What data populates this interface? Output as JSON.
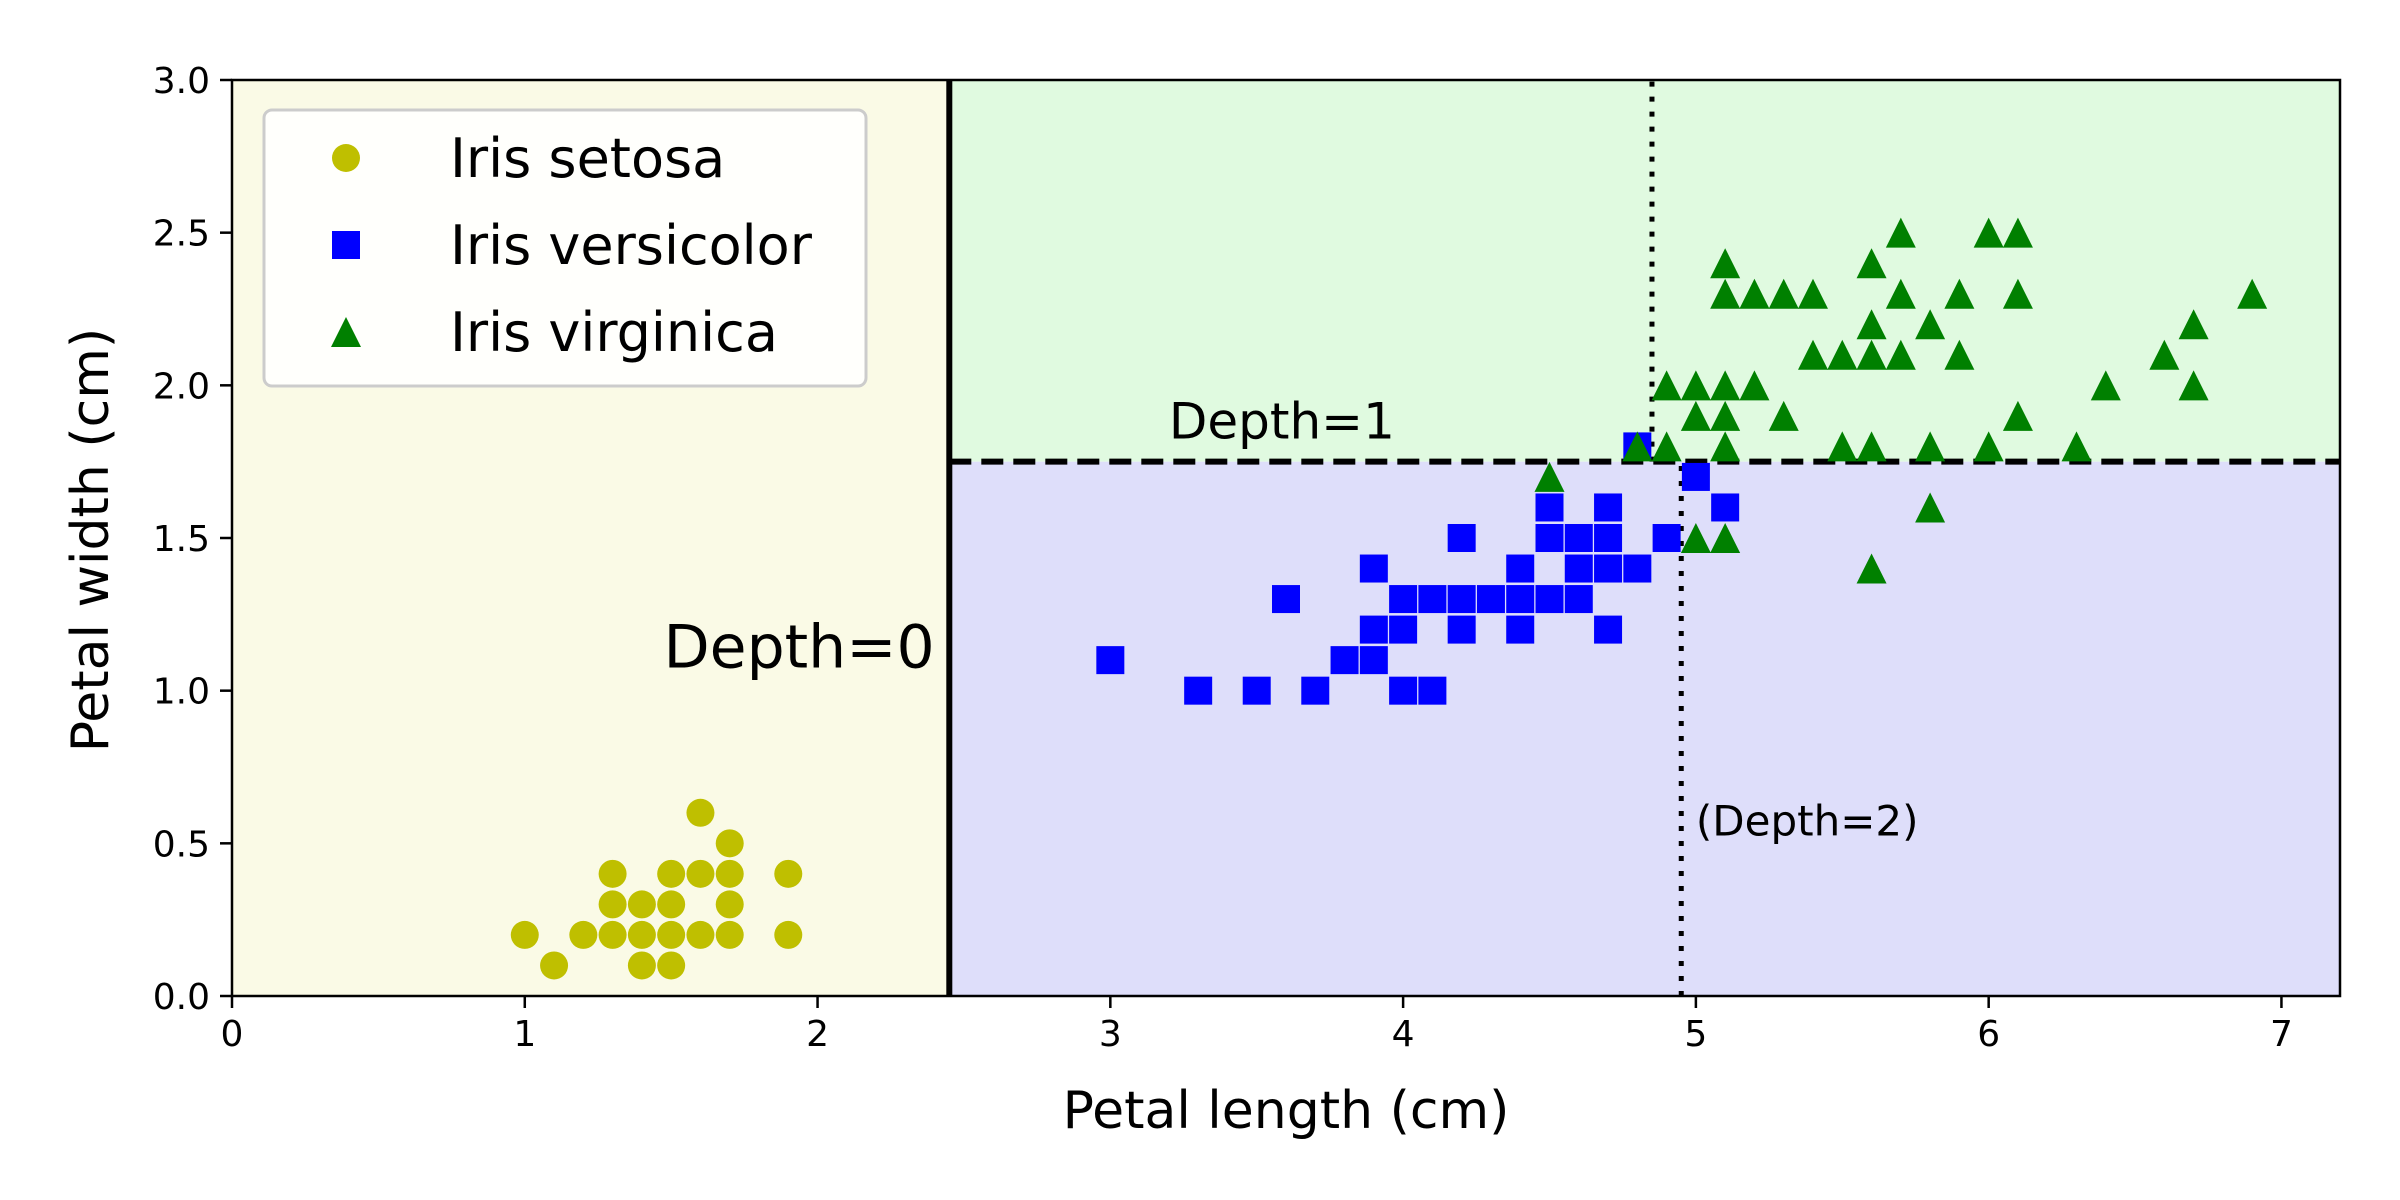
{
  "chart_data": {
    "type": "scatter",
    "xlabel": "Petal length (cm)",
    "ylabel": "Petal width (cm)",
    "xlim": [
      0,
      7.2
    ],
    "ylim": [
      0,
      3.0
    ],
    "xticks": [
      "0",
      "1",
      "2",
      "3",
      "4",
      "5",
      "6",
      "7"
    ],
    "yticks": [
      "0.0",
      "0.5",
      "1.0",
      "1.5",
      "2.0",
      "2.5",
      "3.0"
    ],
    "grid": false,
    "legend_position": "top-left",
    "regions": [
      {
        "x": [
          0,
          2.45
        ],
        "y": [
          0,
          3.0
        ],
        "color": "#fafae6"
      },
      {
        "x": [
          2.45,
          7.2
        ],
        "y": [
          1.75,
          3.0
        ],
        "color": "#e0fae0"
      },
      {
        "x": [
          2.45,
          7.2
        ],
        "y": [
          0,
          1.75
        ],
        "color": "#dedefa"
      }
    ],
    "boundaries": [
      {
        "style": "solid",
        "x": [
          2.45,
          2.45
        ],
        "y": [
          0,
          3.0
        ]
      },
      {
        "style": "dashed",
        "x": [
          2.45,
          7.2
        ],
        "y": [
          1.75,
          1.75
        ]
      },
      {
        "style": "dotted",
        "x": [
          4.95,
          4.95
        ],
        "y": [
          0,
          1.75
        ]
      },
      {
        "style": "dotted",
        "x": [
          4.85,
          4.85
        ],
        "y": [
          1.75,
          3.0
        ]
      }
    ],
    "annotations": [
      {
        "text": "Depth=0",
        "x": 2.4,
        "y": 1.05,
        "anchor": "end",
        "size": "large"
      },
      {
        "text": "Depth=1",
        "x": 3.2,
        "y": 1.8,
        "anchor": "start",
        "size": "medium"
      },
      {
        "text": "(Depth=2)",
        "x": 5.0,
        "y": 0.5,
        "anchor": "start",
        "size": "small"
      }
    ],
    "series": [
      {
        "name": "Iris setosa",
        "marker": "circle",
        "color": "#bfbf00",
        "points": [
          [
            1.0,
            0.2
          ],
          [
            1.1,
            0.1
          ],
          [
            1.2,
            0.2
          ],
          [
            1.3,
            0.2
          ],
          [
            1.3,
            0.3
          ],
          [
            1.3,
            0.4
          ],
          [
            1.4,
            0.1
          ],
          [
            1.4,
            0.2
          ],
          [
            1.4,
            0.3
          ],
          [
            1.5,
            0.1
          ],
          [
            1.5,
            0.2
          ],
          [
            1.5,
            0.3
          ],
          [
            1.5,
            0.4
          ],
          [
            1.6,
            0.2
          ],
          [
            1.6,
            0.4
          ],
          [
            1.6,
            0.6
          ],
          [
            1.7,
            0.2
          ],
          [
            1.7,
            0.3
          ],
          [
            1.7,
            0.4
          ],
          [
            1.7,
            0.5
          ],
          [
            1.9,
            0.2
          ],
          [
            1.9,
            0.4
          ]
        ]
      },
      {
        "name": "Iris versicolor",
        "marker": "square",
        "color": "#0000ff",
        "points": [
          [
            3.0,
            1.1
          ],
          [
            3.3,
            1.0
          ],
          [
            3.5,
            1.0
          ],
          [
            3.6,
            1.3
          ],
          [
            3.7,
            1.0
          ],
          [
            3.8,
            1.1
          ],
          [
            3.9,
            1.1
          ],
          [
            3.9,
            1.2
          ],
          [
            3.9,
            1.4
          ],
          [
            4.0,
            1.0
          ],
          [
            4.0,
            1.2
          ],
          [
            4.0,
            1.3
          ],
          [
            4.1,
            1.0
          ],
          [
            4.1,
            1.3
          ],
          [
            4.2,
            1.2
          ],
          [
            4.2,
            1.3
          ],
          [
            4.2,
            1.5
          ],
          [
            4.3,
            1.3
          ],
          [
            4.4,
            1.2
          ],
          [
            4.4,
            1.3
          ],
          [
            4.4,
            1.4
          ],
          [
            4.5,
            1.3
          ],
          [
            4.5,
            1.5
          ],
          [
            4.5,
            1.6
          ],
          [
            4.6,
            1.3
          ],
          [
            4.6,
            1.4
          ],
          [
            4.6,
            1.5
          ],
          [
            4.7,
            1.2
          ],
          [
            4.7,
            1.4
          ],
          [
            4.7,
            1.5
          ],
          [
            4.7,
            1.6
          ],
          [
            4.8,
            1.4
          ],
          [
            4.8,
            1.8
          ],
          [
            4.9,
            1.5
          ],
          [
            5.0,
            1.7
          ],
          [
            5.1,
            1.6
          ]
        ]
      },
      {
        "name": "Iris virginica",
        "marker": "triangle",
        "color": "#008000",
        "points": [
          [
            4.5,
            1.7
          ],
          [
            4.8,
            1.8
          ],
          [
            4.9,
            1.8
          ],
          [
            4.9,
            2.0
          ],
          [
            5.0,
            1.5
          ],
          [
            5.0,
            1.9
          ],
          [
            5.0,
            2.0
          ],
          [
            5.1,
            1.5
          ],
          [
            5.1,
            1.8
          ],
          [
            5.1,
            1.9
          ],
          [
            5.1,
            2.0
          ],
          [
            5.1,
            2.3
          ],
          [
            5.1,
            2.4
          ],
          [
            5.2,
            2.0
          ],
          [
            5.2,
            2.3
          ],
          [
            5.3,
            1.9
          ],
          [
            5.3,
            2.3
          ],
          [
            5.4,
            2.1
          ],
          [
            5.4,
            2.3
          ],
          [
            5.5,
            1.8
          ],
          [
            5.5,
            2.1
          ],
          [
            5.6,
            1.4
          ],
          [
            5.6,
            1.8
          ],
          [
            5.6,
            2.1
          ],
          [
            5.6,
            2.2
          ],
          [
            5.6,
            2.4
          ],
          [
            5.7,
            2.1
          ],
          [
            5.7,
            2.3
          ],
          [
            5.7,
            2.5
          ],
          [
            5.8,
            1.6
          ],
          [
            5.8,
            1.8
          ],
          [
            5.8,
            2.2
          ],
          [
            5.9,
            2.1
          ],
          [
            5.9,
            2.3
          ],
          [
            6.0,
            1.8
          ],
          [
            6.0,
            2.5
          ],
          [
            6.1,
            1.9
          ],
          [
            6.1,
            2.3
          ],
          [
            6.1,
            2.5
          ],
          [
            6.3,
            1.8
          ],
          [
            6.4,
            2.0
          ],
          [
            6.6,
            2.1
          ],
          [
            6.7,
            2.0
          ],
          [
            6.7,
            2.2
          ],
          [
            6.9,
            2.3
          ]
        ]
      }
    ]
  }
}
